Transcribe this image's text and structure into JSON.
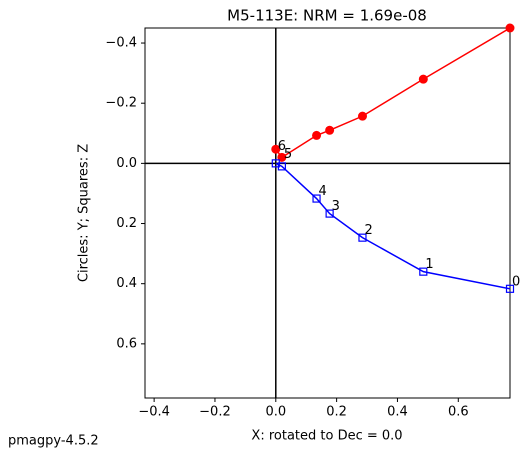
{
  "chart_data": {
    "type": "zijderveld",
    "title": "M5-113E: NRM =  1.69e-08",
    "xlabel": "X: rotated to Dec =     0.0",
    "ylabel": "Circles: Y; Squares: Z",
    "x": [
      0.77,
      0.485,
      0.285,
      0.177,
      0.134,
      0.02,
      0.0
    ],
    "point_labels": [
      "0",
      "1",
      "2",
      "3",
      "4",
      "5",
      "6"
    ],
    "series": [
      {
        "marker": "circle",
        "color": "#ff0000",
        "values": [
          -0.45,
          -0.28,
          -0.157,
          -0.11,
          -0.093,
          -0.02,
          -0.047
        ]
      },
      {
        "marker": "square",
        "color": "#0000ff",
        "values": [
          0.417,
          0.36,
          0.247,
          0.167,
          0.117,
          0.01,
          0.0
        ]
      }
    ],
    "xlim": [
      -0.43,
      0.77
    ],
    "ylim": [
      -0.45,
      0.78
    ],
    "y_inverted": true,
    "xticks": [
      {
        "value": -0.4,
        "label": "−0.4"
      },
      {
        "value": -0.2,
        "label": "−0.2"
      },
      {
        "value": 0,
        "label": "0.0"
      },
      {
        "value": 0.2,
        "label": "0.2"
      },
      {
        "value": 0.4,
        "label": "0.4"
      },
      {
        "value": 0.6,
        "label": "0.6"
      }
    ],
    "yticks": [
      {
        "value": -0.4,
        "label": "−0.4"
      },
      {
        "value": -0.2,
        "label": "−0.2"
      },
      {
        "value": 0,
        "label": "0.0"
      },
      {
        "value": 0.2,
        "label": "0.2"
      },
      {
        "value": 0.4,
        "label": "0.4"
      },
      {
        "value": 0.6,
        "label": "0.6"
      }
    ]
  },
  "footer": "pmagpy-4.5.2"
}
